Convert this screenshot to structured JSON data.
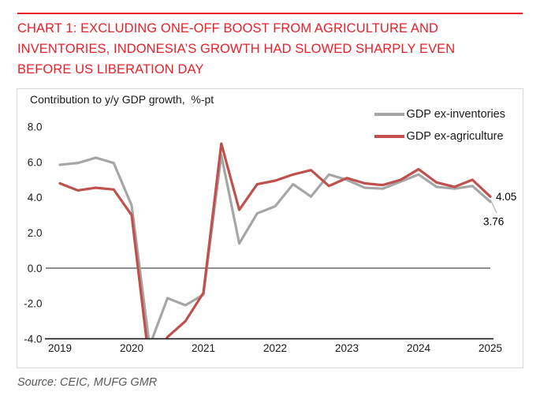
{
  "header": {
    "title": "CHART 1: EXCLUDING ONE-OFF BOOST FROM AGRICULTURE AND\nINVENTORIES, INDONESIA’S GROWTH HAD SLOWED SHARPLY EVEN\nBEFORE US LIBERATION DAY",
    "title_color": "#ec1e28"
  },
  "source": {
    "text": "Source: CEIC, MUFG GMR"
  },
  "chart_data": {
    "type": "line",
    "title": "Contribution to y/y GDP growth,  %-pt",
    "frequency": "quarterly",
    "x_range": "2019Q1 to 2025Q1",
    "x_ticks": [
      "2019",
      "2020",
      "2021",
      "2022",
      "2023",
      "2024",
      "2025"
    ],
    "y_ticks": [
      "8.0",
      "6.0",
      "4.0",
      "2.0",
      "0.0",
      "-2.0",
      "-4.0"
    ],
    "ylim": [
      -4.0,
      8.0
    ],
    "grid": "none",
    "zero_line": 0.0,
    "legend_position": "top-right",
    "series": [
      {
        "name": "GDP ex-inventories",
        "color": "#a6a6a6",
        "values": [
          5.85,
          5.95,
          6.25,
          5.95,
          3.55,
          -4.4,
          -1.7,
          -2.1,
          -1.5,
          6.4,
          1.4,
          3.1,
          3.5,
          4.75,
          4.05,
          5.3,
          5.0,
          4.55,
          4.5,
          4.9,
          5.3,
          4.6,
          4.5,
          4.65,
          3.76
        ]
      },
      {
        "name": "GDP ex-agriculture",
        "color": "#c0504d",
        "values": [
          4.8,
          4.4,
          4.55,
          4.45,
          3.0,
          -5.5,
          -3.9,
          -3.0,
          -1.4,
          7.05,
          3.3,
          4.75,
          4.95,
          5.3,
          5.55,
          4.65,
          5.1,
          4.8,
          4.7,
          5.0,
          5.6,
          4.85,
          4.6,
          5.0,
          4.05
        ]
      }
    ],
    "end_labels": {
      "ex_agriculture": "4.05",
      "ex_inventories": "3.76"
    },
    "note": "values below -4.0 in 2020 are clipped at axis minimum"
  }
}
